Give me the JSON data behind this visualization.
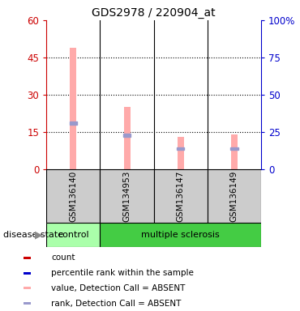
{
  "title": "GDS2978 / 220904_at",
  "samples": [
    "GSM136140",
    "GSM134953",
    "GSM136147",
    "GSM136149"
  ],
  "pink_bar_values": [
    49.0,
    25.0,
    13.0,
    14.0
  ],
  "blue_marker_values": [
    31.0,
    23.0,
    14.0,
    14.0
  ],
  "ylim_left": [
    0,
    60
  ],
  "ylim_right": [
    0,
    100
  ],
  "yticks_left": [
    0,
    15,
    30,
    45,
    60
  ],
  "yticks_right": [
    0,
    25,
    50,
    75,
    100
  ],
  "ytick_labels_left": [
    "0",
    "15",
    "30",
    "45",
    "60"
  ],
  "ytick_labels_right": [
    "0",
    "25",
    "50",
    "75",
    "100%"
  ],
  "left_axis_color": "#cc0000",
  "right_axis_color": "#0000cc",
  "pink_bar_color": "#ffaaaa",
  "blue_marker_color": "#9999cc",
  "control_color": "#aaffaa",
  "ms_color": "#44cc44",
  "sample_bg_color": "#cccccc",
  "disease_state_label": "disease state",
  "legend_items": [
    {
      "color": "#cc0000",
      "label": "count"
    },
    {
      "color": "#0000cc",
      "label": "percentile rank within the sample"
    },
    {
      "color": "#ffaaaa",
      "label": "value, Detection Call = ABSENT"
    },
    {
      "color": "#9999cc",
      "label": "rank, Detection Call = ABSENT"
    }
  ],
  "bar_width": 0.12,
  "figsize": [
    3.7,
    3.84
  ],
  "dpi": 100
}
